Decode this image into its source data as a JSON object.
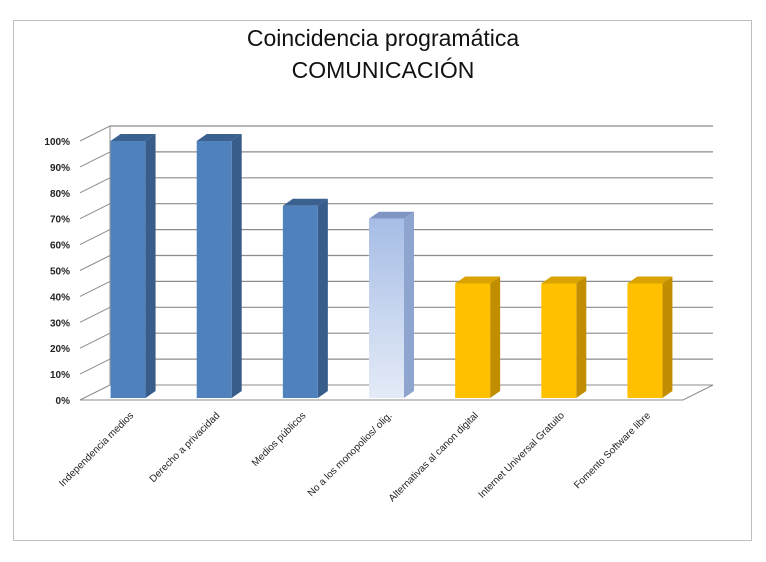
{
  "chart_data": {
    "type": "bar",
    "title": "Coincidencia programática",
    "subtitle": "COMUNICACIÓN",
    "categories": [
      "Independencia medios",
      "Derecho a privacidad",
      "Medios públicos",
      "No a los monopolios/ olig.",
      "Alternativas al canon digital",
      "Internet Universal Gratuito",
      "Fomento Software libre"
    ],
    "values": [
      100,
      100,
      75,
      70,
      45,
      45,
      45
    ],
    "bar_styles": [
      "blue",
      "blue",
      "blue",
      "lightblue",
      "gold",
      "gold",
      "gold"
    ],
    "yticks": [
      "0%",
      "10%",
      "20%",
      "30%",
      "40%",
      "50%",
      "60%",
      "70%",
      "80%",
      "90%",
      "100%"
    ],
    "ylim": [
      0,
      100
    ],
    "grid": true,
    "three_d": true
  },
  "colors": {
    "blue": {
      "front": "#4f81bd",
      "side": "#385d8a",
      "top": "#3a6190"
    },
    "lightblue": {
      "front_top": "#a7bde6",
      "front_bottom": "#e4ebf7",
      "side": "#8ea5cf",
      "top": "#7f95c4"
    },
    "gold": {
      "front": "#ffc000",
      "side": "#c08e00",
      "top": "#d9a300"
    },
    "grid": "#8c8c8c"
  }
}
